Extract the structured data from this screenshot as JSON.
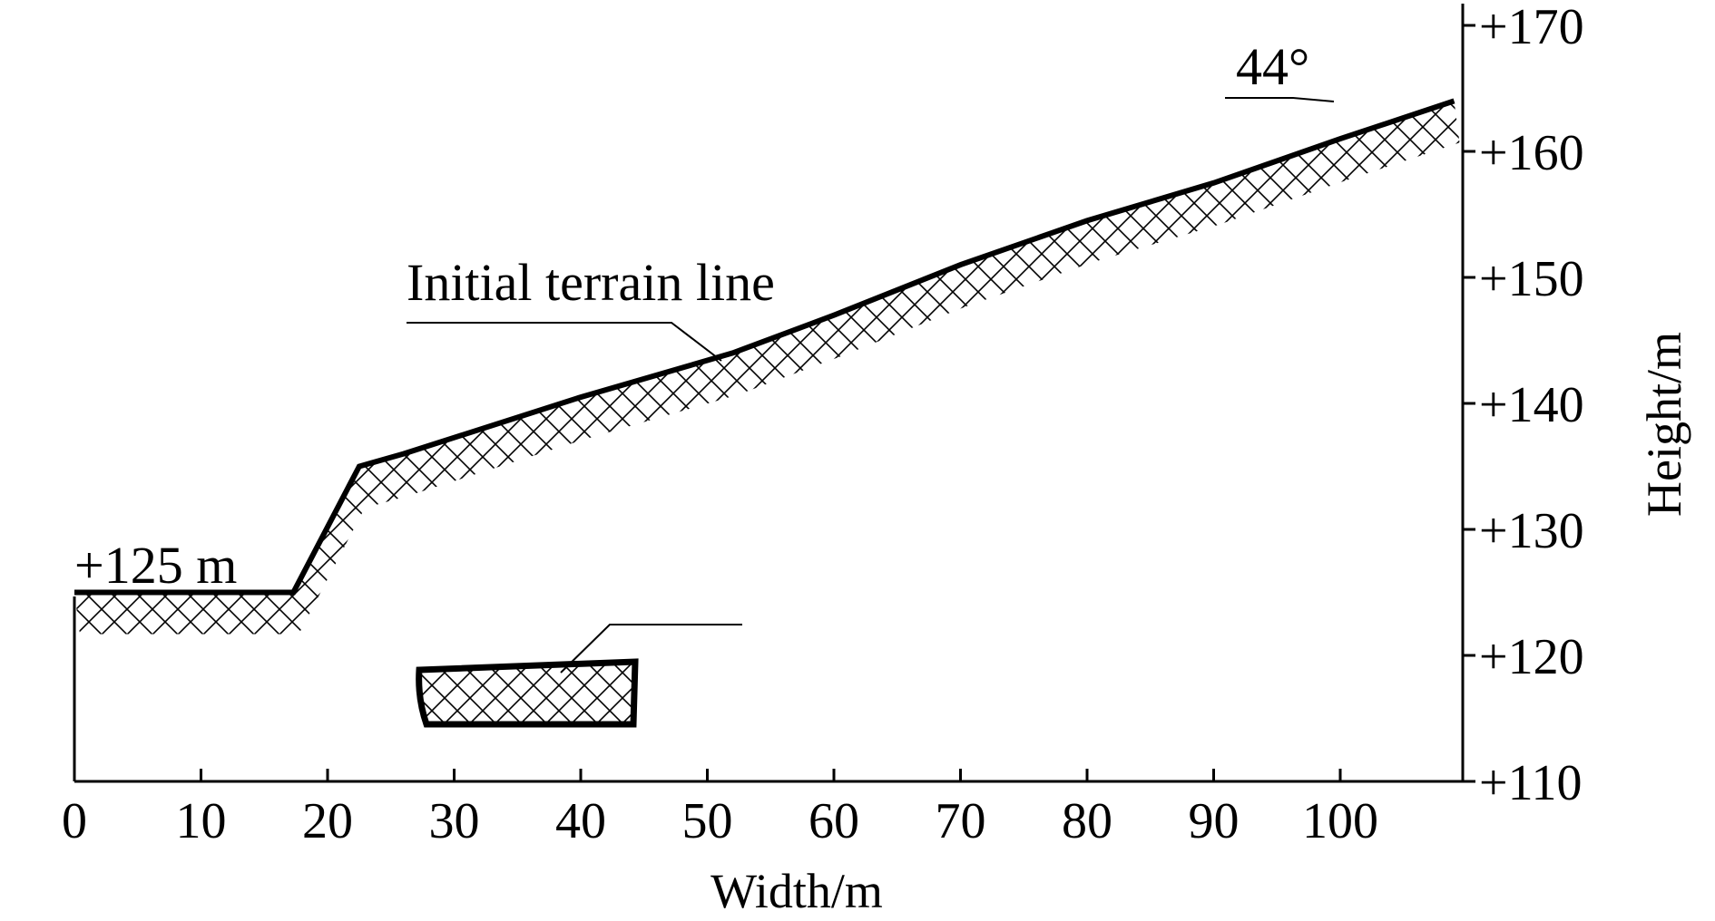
{
  "chart_data": {
    "type": "line",
    "xlabel": "Width/m",
    "ylabel": "Height/m",
    "xlim": [
      0,
      109
    ],
    "ylim": [
      110,
      172
    ],
    "x_ticks": [
      "0",
      "10",
      "20",
      "30",
      "40",
      "50",
      "60",
      "70",
      "80",
      "90",
      "100"
    ],
    "y_ticks": [
      "+110",
      "+120",
      "+130",
      "+140",
      "+150",
      "+160",
      "+170"
    ],
    "series": [
      {
        "name": "Initial terrain line",
        "points": [
          {
            "x": 0,
            "y": 125
          },
          {
            "x": 17.3,
            "y": 125
          },
          {
            "x": 22.5,
            "y": 135
          },
          {
            "x": 26,
            "y": 136
          },
          {
            "x": 40,
            "y": 140.5
          },
          {
            "x": 52,
            "y": 144
          },
          {
            "x": 60,
            "y": 147
          },
          {
            "x": 70,
            "y": 151
          },
          {
            "x": 80,
            "y": 154.5
          },
          {
            "x": 90,
            "y": 157.5
          },
          {
            "x": 100,
            "y": 161
          },
          {
            "x": 109,
            "y": 164
          }
        ]
      }
    ],
    "annotations": {
      "elevation_label": "+125 m",
      "terrain_label": "Initial terrain line",
      "angle_label": "44°"
    }
  }
}
